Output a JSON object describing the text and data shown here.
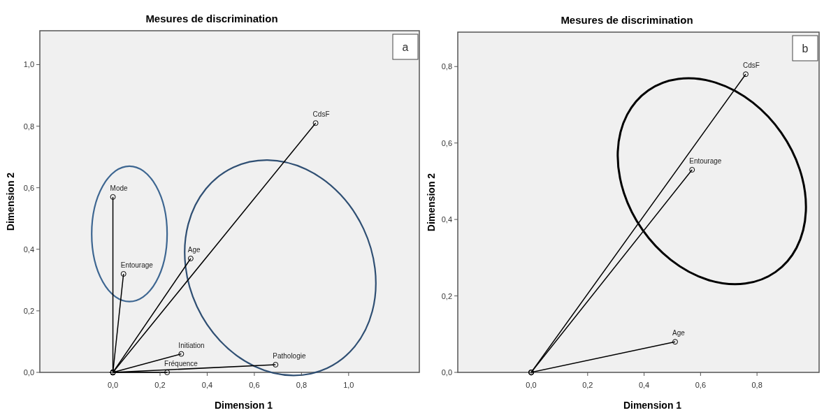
{
  "chart_data": [
    {
      "type": "line",
      "title": "Mesures de discrimination",
      "xlabel": "Dimension 1",
      "ylabel": "Dimension 2",
      "annotations": [
        "a"
      ],
      "marker": "circle",
      "line_style": "solid",
      "xlim": [
        -0.31,
        1.3
      ],
      "ylim": [
        0,
        1.11
      ],
      "xticks": [
        {
          "value": 0,
          "label": "0,0"
        },
        {
          "value": 0.2,
          "label": "0,2"
        },
        {
          "value": 0.4,
          "label": "0,4"
        },
        {
          "value": 0.6,
          "label": "0,6"
        },
        {
          "value": 0.8,
          "label": "0,8"
        },
        {
          "value": 1,
          "label": "1,0"
        }
      ],
      "yticks": [
        {
          "value": 0,
          "label": "0,0"
        },
        {
          "value": 0.2,
          "label": "0,2"
        },
        {
          "value": 0.4,
          "label": "0,4"
        },
        {
          "value": 0.6,
          "label": "0,6"
        },
        {
          "value": 0.8,
          "label": "0,8"
        },
        {
          "value": 1,
          "label": "1,0"
        }
      ],
      "series": [
        {
          "name": "Mode",
          "color": "#000000",
          "x": [
            0,
            0
          ],
          "values": [
            0,
            0.57
          ]
        },
        {
          "name": "Entourage",
          "color": "#000000",
          "x": [
            0,
            0.045
          ],
          "values": [
            0,
            0.32
          ]
        },
        {
          "name": "Age",
          "color": "#000000",
          "x": [
            0,
            0.33
          ],
          "values": [
            0,
            0.37
          ]
        },
        {
          "name": "CdsF",
          "color": "#000000",
          "x": [
            0,
            0.86
          ],
          "values": [
            0,
            0.81
          ]
        },
        {
          "name": "Initiation",
          "color": "#000000",
          "x": [
            0,
            0.29
          ],
          "values": [
            0,
            0.06
          ]
        },
        {
          "name": "Fréquence",
          "color": "#000000",
          "x": [
            0,
            0.23
          ],
          "values": [
            0,
            0.0
          ]
        },
        {
          "name": "Pathologie",
          "color": "#000000",
          "x": [
            0,
            0.69
          ],
          "values": [
            0,
            0.025
          ]
        }
      ]
    },
    {
      "type": "line",
      "title": "Mesures de discrimination",
      "xlabel": "Dimension 1",
      "ylabel": "Dimension 2",
      "annotations": [
        "b"
      ],
      "marker": "circle",
      "line_style": "solid",
      "xlim": [
        -0.26,
        1.02
      ],
      "ylim": [
        0,
        0.89
      ],
      "xticks": [
        {
          "value": 0,
          "label": "0,0"
        },
        {
          "value": 0.2,
          "label": "0,2"
        },
        {
          "value": 0.4,
          "label": "0,4"
        },
        {
          "value": 0.6,
          "label": "0,6"
        },
        {
          "value": 0.8,
          "label": "0,8"
        }
      ],
      "yticks": [
        {
          "value": 0,
          "label": "0,0"
        },
        {
          "value": 0.2,
          "label": "0,2"
        },
        {
          "value": 0.4,
          "label": "0,4"
        },
        {
          "value": 0.6,
          "label": "0,6"
        },
        {
          "value": 0.8,
          "label": "0,8"
        }
      ],
      "series": [
        {
          "name": "CdsF",
          "color": "#000000",
          "x": [
            0,
            0.76
          ],
          "values": [
            0,
            0.78
          ]
        },
        {
          "name": "Entourage",
          "color": "#000000",
          "x": [
            0,
            0.57
          ],
          "values": [
            0,
            0.53
          ]
        },
        {
          "name": "Age",
          "color": "#000000",
          "x": [
            0,
            0.51
          ],
          "values": [
            0,
            0.08
          ]
        }
      ]
    }
  ]
}
